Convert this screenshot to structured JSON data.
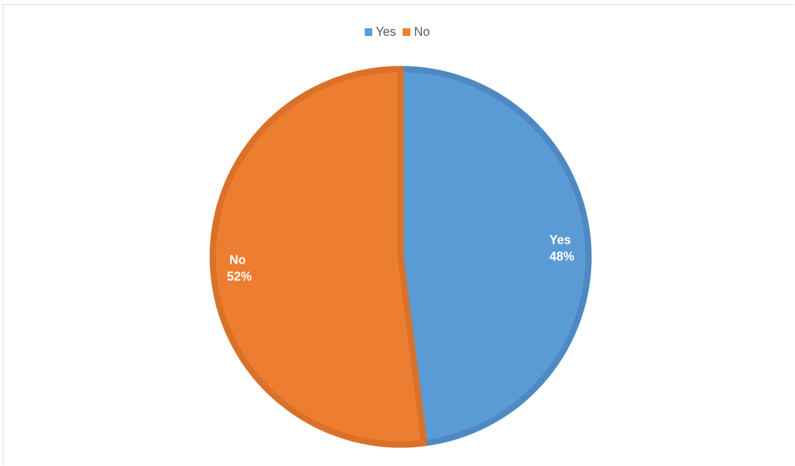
{
  "chart_data": {
    "type": "pie",
    "title": "",
    "categories": [
      "Yes",
      "No"
    ],
    "values": [
      48,
      52
    ],
    "data_labels": [
      {
        "category": "Yes",
        "percent": "48%"
      },
      {
        "category": "No",
        "percent": "52%"
      }
    ],
    "colors": [
      "#5B9BD5",
      "#ED7D31"
    ],
    "border_colors": [
      "#4F89C2",
      "#D9712A"
    ],
    "legend": {
      "placement": "top",
      "entries": [
        "Yes",
        "No"
      ]
    }
  }
}
